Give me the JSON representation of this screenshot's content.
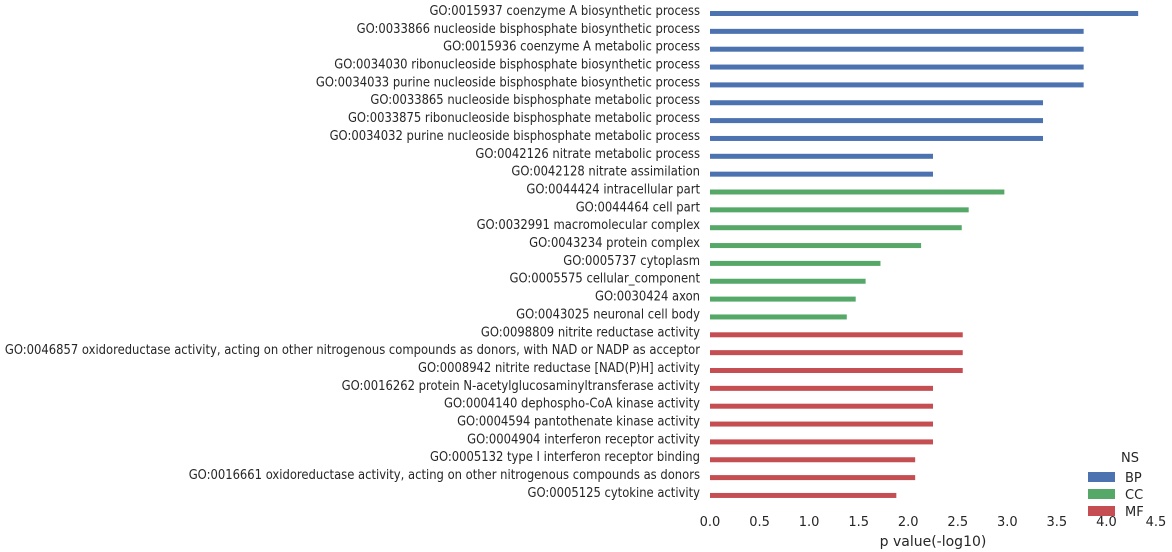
{
  "chart_data": {
    "type": "bar",
    "orientation": "horizontal",
    "xlabel": "p value(-log10)",
    "ylabel": "",
    "xlim": [
      0,
      4.5
    ],
    "x_ticks": [
      "0.0",
      "0.5",
      "1.0",
      "1.5",
      "2.0",
      "2.5",
      "3.0",
      "3.5",
      "4.0",
      "4.5"
    ],
    "grid": false,
    "legend": {
      "title": "NS",
      "placement": "lower-right",
      "entries": [
        {
          "name": "BP",
          "color": "#4c72b0"
        },
        {
          "name": "CC",
          "color": "#55a868"
        },
        {
          "name": "MF",
          "color": "#c44e52"
        }
      ]
    },
    "categories": [
      "GO:0015937 coenzyme A biosynthetic process",
      "GO:0033866 nucleoside bisphosphate biosynthetic process",
      "GO:0015936 coenzyme A metabolic process",
      "GO:0034030 ribonucleoside bisphosphate biosynthetic process",
      "GO:0034033 purine nucleoside bisphosphate biosynthetic process",
      "GO:0033865 nucleoside bisphosphate metabolic process",
      "GO:0033875 ribonucleoside bisphosphate metabolic process",
      "GO:0034032 purine nucleoside bisphosphate metabolic process",
      "GO:0042126 nitrate metabolic process",
      "GO:0042128 nitrate assimilation",
      "GO:0044424 intracellular part",
      "GO:0044464 cell part",
      "GO:0032991 macromolecular complex",
      "GO:0043234 protein complex",
      "GO:0005737 cytoplasm",
      "GO:0005575 cellular_component",
      "GO:0030424 axon",
      "GO:0043025 neuronal cell body",
      "GO:0098809 nitrite reductase activity",
      "GO:0046857 oxidoreductase activity, acting on other nitrogenous compounds as donors, with NAD or NADP as acceptor",
      "GO:0008942 nitrite reductase [NAD(P)H] activity",
      "GO:0016262 protein N-acetylglucosaminyltransferase activity",
      "GO:0004140 dephospho-CoA kinase activity",
      "GO:0004594 pantothenate kinase activity",
      "GO:0004904 interferon receptor activity",
      "GO:0005132 type I interferon receptor binding",
      "GO:0016661 oxidoreductase activity, acting on other nitrogenous compounds as donors",
      "GO:0005125 cytokine activity"
    ],
    "values": [
      4.32,
      3.77,
      3.77,
      3.77,
      3.77,
      3.36,
      3.36,
      3.36,
      2.25,
      2.25,
      2.97,
      2.61,
      2.54,
      2.13,
      1.72,
      1.57,
      1.47,
      1.38,
      2.55,
      2.55,
      2.55,
      2.25,
      2.25,
      2.25,
      2.25,
      2.07,
      2.07,
      1.88
    ],
    "groups": [
      "BP",
      "BP",
      "BP",
      "BP",
      "BP",
      "BP",
      "BP",
      "BP",
      "BP",
      "BP",
      "CC",
      "CC",
      "CC",
      "CC",
      "CC",
      "CC",
      "CC",
      "CC",
      "MF",
      "MF",
      "MF",
      "MF",
      "MF",
      "MF",
      "MF",
      "MF",
      "MF",
      "MF"
    ]
  }
}
